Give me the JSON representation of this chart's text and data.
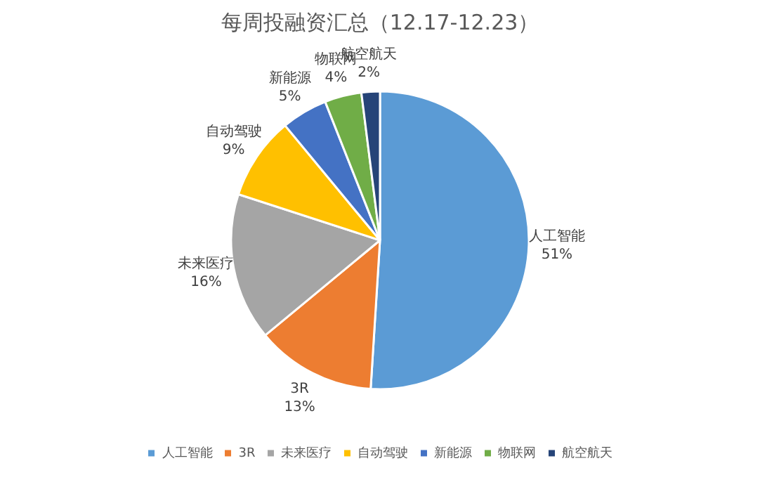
{
  "chart_data": {
    "type": "pie",
    "title": "每周投融资汇总（12.17-12.23）",
    "categories": [
      "人工智能",
      "3R",
      "未来医疗",
      "自动驾驶",
      "新能源",
      "物联网",
      "航空航天"
    ],
    "values": [
      51,
      13,
      16,
      9,
      5,
      4,
      2
    ],
    "colors": [
      "#5b9bd5",
      "#ed7d31",
      "#a5a5a5",
      "#ffc000",
      "#4472c4",
      "#70ad47",
      "#264478"
    ],
    "value_labels": [
      "51%",
      "13%",
      "16%",
      "9%",
      "5%",
      "4%",
      "2%"
    ],
    "legend": "bottom"
  }
}
